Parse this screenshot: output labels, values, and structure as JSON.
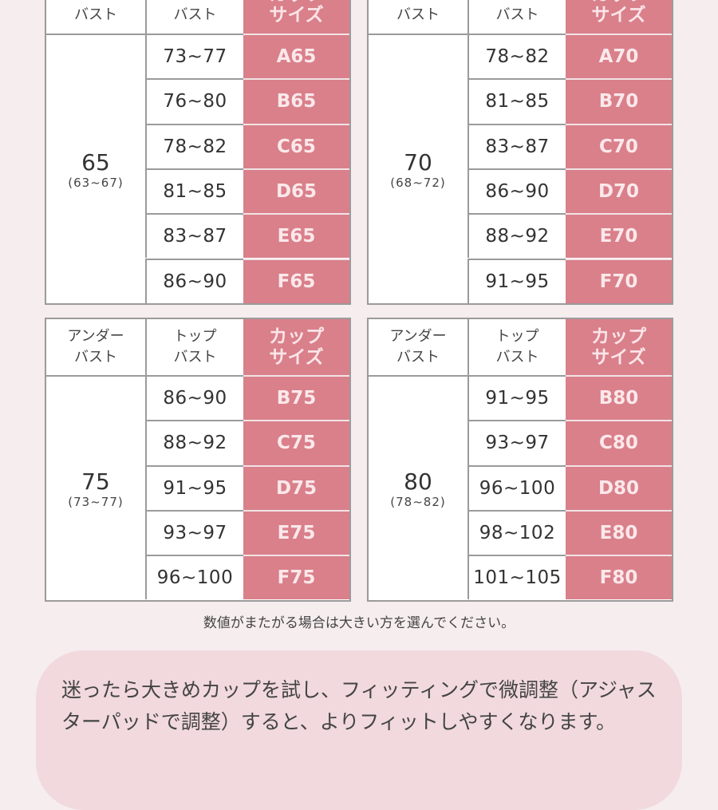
{
  "headers": {
    "under": "アンダー\nバスト",
    "top": "トップ\nバスト",
    "cup": "カップ\nサイズ"
  },
  "tables": [
    {
      "under": "65",
      "range": "(63~67)",
      "rows": [
        {
          "top": "73~77",
          "cup": "A65"
        },
        {
          "top": "76~80",
          "cup": "B65"
        },
        {
          "top": "78~82",
          "cup": "C65"
        },
        {
          "top": "81~85",
          "cup": "D65"
        },
        {
          "top": "83~87",
          "cup": "E65"
        },
        {
          "top": "86~90",
          "cup": "F65"
        }
      ]
    },
    {
      "under": "70",
      "range": "(68~72)",
      "rows": [
        {
          "top": "78~82",
          "cup": "A70"
        },
        {
          "top": "81~85",
          "cup": "B70"
        },
        {
          "top": "83~87",
          "cup": "C70"
        },
        {
          "top": "86~90",
          "cup": "D70"
        },
        {
          "top": "88~92",
          "cup": "E70"
        },
        {
          "top": "91~95",
          "cup": "F70"
        }
      ]
    },
    {
      "under": "75",
      "range": "(73~77)",
      "rows": [
        {
          "top": "86~90",
          "cup": "B75"
        },
        {
          "top": "88~92",
          "cup": "C75"
        },
        {
          "top": "91~95",
          "cup": "D75"
        },
        {
          "top": "93~97",
          "cup": "E75"
        },
        {
          "top": "96~100",
          "cup": "F75"
        }
      ]
    },
    {
      "under": "80",
      "range": "(78~82)",
      "rows": [
        {
          "top": "91~95",
          "cup": "B80"
        },
        {
          "top": "93~97",
          "cup": "C80"
        },
        {
          "top": "96~100",
          "cup": "D80"
        },
        {
          "top": "98~102",
          "cup": "E80"
        },
        {
          "top": "101~105",
          "cup": "F80"
        }
      ]
    }
  ],
  "note": "数値がまたがる場合は大きい方を選んでください。",
  "tip": "迷ったら大きめカップを試し、フィッティングで微調整（アジャスターパッドで調整）すると、よりフィットしやすくなります。",
  "colors": {
    "cup_cell": "#d9808b",
    "background": "#f6edef",
    "tip_bubble": "#f1d9dd"
  }
}
